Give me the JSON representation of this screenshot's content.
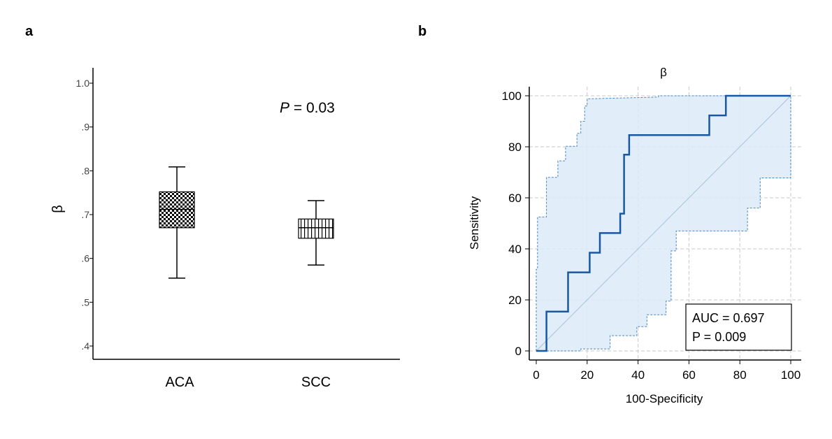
{
  "panels": {
    "a": "a",
    "b": "b"
  },
  "chart_data": [
    {
      "type": "box",
      "panel": "a",
      "ylabel": "β",
      "ylim": [
        0.4,
        1.03
      ],
      "yticks": [
        {
          "v": 0.4,
          "label": ".4"
        },
        {
          "v": 0.5,
          "label": ".5"
        },
        {
          "v": 0.6,
          "label": ".6"
        },
        {
          "v": 0.7,
          "label": ".7"
        },
        {
          "v": 0.8,
          "label": ".8"
        },
        {
          "v": 0.9,
          "label": ".9"
        },
        {
          "v": 1.0,
          "label": "1.0"
        }
      ],
      "categories": [
        "ACA",
        "SCC"
      ],
      "boxes": [
        {
          "name": "ACA",
          "whisker_low": 0.555,
          "q1": 0.67,
          "median": 0.712,
          "q3": 0.752,
          "whisker_high": 0.809,
          "pattern": "checker"
        },
        {
          "name": "SCC",
          "whisker_low": 0.585,
          "q1": 0.646,
          "median": 0.67,
          "q3": 0.69,
          "whisker_high": 0.732,
          "pattern": "vlines"
        }
      ],
      "annotation": {
        "italic": "P",
        "rest": " = 0.03"
      }
    },
    {
      "type": "line",
      "panel": "b",
      "title": "β",
      "xlabel": "100-Specificity",
      "ylabel": "Sensitivity",
      "xlim": [
        0,
        100
      ],
      "ylim": [
        0,
        100
      ],
      "xticks": [
        0,
        20,
        40,
        60,
        80,
        100
      ],
      "yticks": [
        0,
        20,
        40,
        60,
        80,
        100
      ],
      "roc_curve": [
        [
          0,
          0
        ],
        [
          4,
          0
        ],
        [
          4,
          15.4
        ],
        [
          12.5,
          15.4
        ],
        [
          12.5,
          30.8
        ],
        [
          21,
          30.8
        ],
        [
          21,
          38.5
        ],
        [
          25,
          38.5
        ],
        [
          25,
          46.2
        ],
        [
          33,
          46.2
        ],
        [
          33,
          53.8
        ],
        [
          34.5,
          53.8
        ],
        [
          34.5,
          76.9
        ],
        [
          36.5,
          76.9
        ],
        [
          36.5,
          84.6
        ],
        [
          68,
          84.6
        ],
        [
          68,
          92.3
        ],
        [
          74.5,
          92.3
        ],
        [
          74.5,
          100
        ],
        [
          100,
          100
        ]
      ],
      "ci_upper": [
        [
          0,
          0
        ],
        [
          0,
          32
        ],
        [
          0.5,
          32
        ],
        [
          0.5,
          52.5
        ],
        [
          4,
          52.5
        ],
        [
          4,
          68
        ],
        [
          8.5,
          68
        ],
        [
          8.5,
          74.5
        ],
        [
          11.5,
          74.5
        ],
        [
          11.5,
          80.2
        ],
        [
          16,
          80.2
        ],
        [
          16,
          85.3
        ],
        [
          17.5,
          85.3
        ],
        [
          17.5,
          90
        ],
        [
          19,
          90
        ],
        [
          19,
          96
        ],
        [
          20,
          96
        ],
        [
          20,
          98.8
        ],
        [
          48,
          99.5
        ],
        [
          48,
          100
        ],
        [
          100,
          100
        ]
      ],
      "ci_lower": [
        [
          0,
          0
        ],
        [
          17.5,
          0
        ],
        [
          17.5,
          0.8
        ],
        [
          29,
          0.8
        ],
        [
          29,
          6
        ],
        [
          39.5,
          6
        ],
        [
          39.5,
          9.5
        ],
        [
          43.5,
          9.5
        ],
        [
          43.5,
          14.2
        ],
        [
          51,
          14.2
        ],
        [
          51,
          19.5
        ],
        [
          53,
          19.5
        ],
        [
          53,
          39.2
        ],
        [
          55,
          39.2
        ],
        [
          55,
          47
        ],
        [
          83,
          47
        ],
        [
          83,
          56
        ],
        [
          88,
          56
        ],
        [
          88,
          67.8
        ],
        [
          100,
          67.8
        ],
        [
          100,
          100
        ]
      ],
      "reference_line": [
        [
          0,
          0
        ],
        [
          100,
          100
        ]
      ],
      "stats": {
        "auc": "AUC = 0.697",
        "p": "P = 0.009"
      },
      "grid": true,
      "legend": "bottom-right"
    }
  ]
}
